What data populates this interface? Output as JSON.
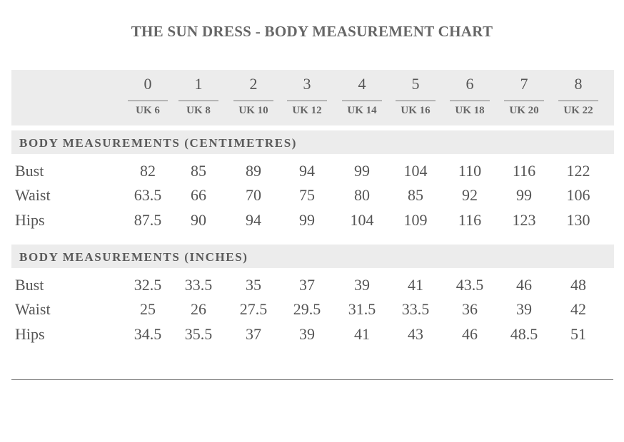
{
  "title": "THE SUN DRESS - BODY MEASUREMENT CHART",
  "sizes": [
    "0",
    "1",
    "2",
    "3",
    "4",
    "5",
    "6",
    "7",
    "8"
  ],
  "uk_sizes": [
    "UK 6",
    "UK 8",
    "UK 10",
    "UK 12",
    "UK 14",
    "UK 16",
    "UK 18",
    "UK 20",
    "UK 22"
  ],
  "sections": [
    {
      "heading": "BODY MEASUREMENTS (CENTIMETRES)",
      "rows": [
        {
          "label": "Bust",
          "values": [
            "82",
            "85",
            "89",
            "94",
            "99",
            "104",
            "110",
            "116",
            "122"
          ]
        },
        {
          "label": "Waist",
          "values": [
            "63.5",
            "66",
            "70",
            "75",
            "80",
            "85",
            "92",
            "99",
            "106"
          ]
        },
        {
          "label": "Hips",
          "values": [
            "87.5",
            "90",
            "94",
            "99",
            "104",
            "109",
            "116",
            "123",
            "130"
          ]
        }
      ]
    },
    {
      "heading": "BODY MEASUREMENTS (INCHES)",
      "rows": [
        {
          "label": "Bust",
          "values": [
            "32.5",
            "33.5",
            "35",
            "37",
            "39",
            "41",
            "43.5",
            "46",
            "48"
          ]
        },
        {
          "label": "Waist",
          "values": [
            "25",
            "26",
            "27.5",
            "29.5",
            "31.5",
            "33.5",
            "36",
            "39",
            "42"
          ]
        },
        {
          "label": "Hips",
          "values": [
            "34.5",
            "35.5",
            "37",
            "39",
            "41",
            "43",
            "46",
            "48.5",
            "51"
          ]
        }
      ]
    }
  ],
  "colors": {
    "band": "#ececec",
    "text": "#555555"
  }
}
